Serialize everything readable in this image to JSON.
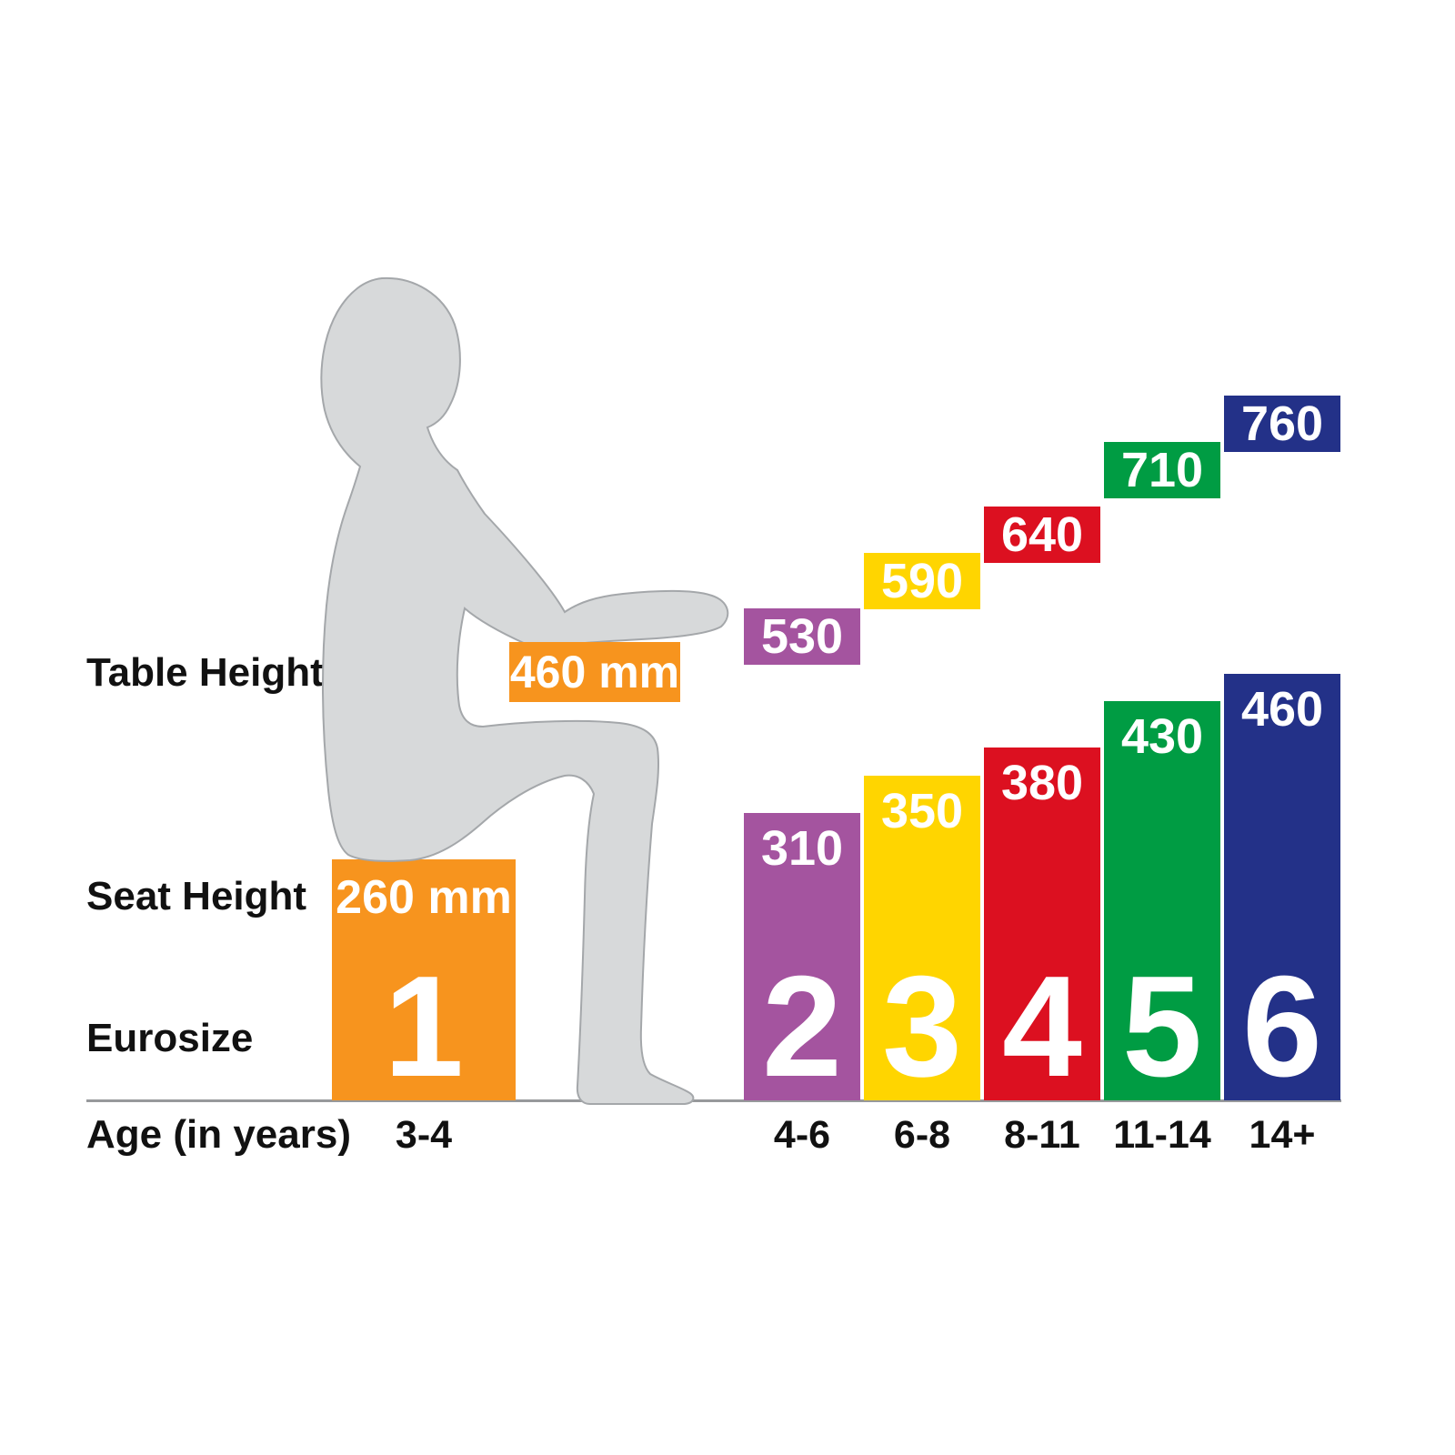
{
  "chart_data": {
    "type": "bar",
    "unit": "mm",
    "row_labels": {
      "table_height": "Table Height",
      "seat_height": "Seat Height",
      "eurosize": "Eurosize",
      "age": "Age (in years)"
    },
    "categories": [
      "1",
      "2",
      "3",
      "4",
      "5",
      "6"
    ],
    "ages": [
      "3-4",
      "4-6",
      "6-8",
      "8-11",
      "11-14",
      "14+"
    ],
    "series": [
      {
        "name": "Table Height",
        "values": [
          460,
          530,
          590,
          640,
          710,
          760
        ]
      },
      {
        "name": "Seat Height",
        "values": [
          260,
          310,
          350,
          380,
          430,
          460
        ]
      }
    ],
    "colors": [
      "#F7941E",
      "#A4549F",
      "#FFD500",
      "#DC1020",
      "#009C43",
      "#233188"
    ],
    "size1_annotations": {
      "table_height": "460 mm",
      "seat_height": "260 mm"
    },
    "ylim": [
      0,
      800
    ],
    "grid": false,
    "legend": false
  },
  "figure": {
    "silhouette_fill": "#D7D9DA",
    "silhouette_outline": "#A4A7AA"
  }
}
